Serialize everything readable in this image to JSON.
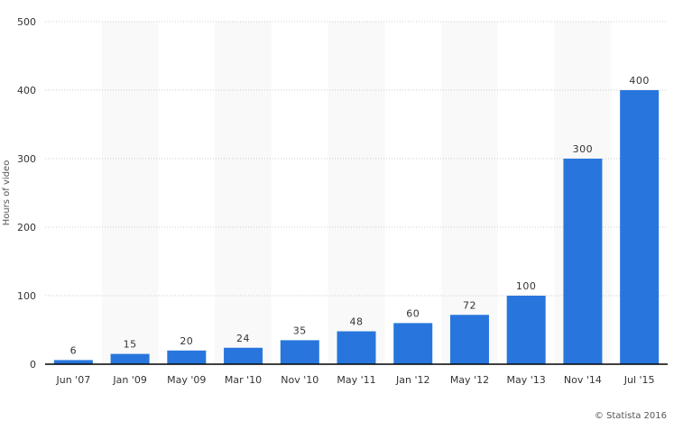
{
  "chart_data": {
    "type": "bar",
    "categories": [
      "Jun '07",
      "Jan '09",
      "May '09",
      "Mar '10",
      "Nov '10",
      "May '11",
      "Jan '12",
      "May '12",
      "May '13",
      "Nov '14",
      "Jul '15"
    ],
    "values": [
      6,
      15,
      20,
      24,
      35,
      48,
      60,
      72,
      100,
      300,
      400
    ],
    "xlabel": "",
    "ylabel": "Hours of video",
    "ylim": [
      0,
      500
    ],
    "yticks": [
      0,
      100,
      200,
      300,
      400,
      500
    ],
    "grid": true,
    "bar_color": "#2876dd",
    "band_color": "#f9f9f9"
  },
  "credit": "© Statista 2016"
}
